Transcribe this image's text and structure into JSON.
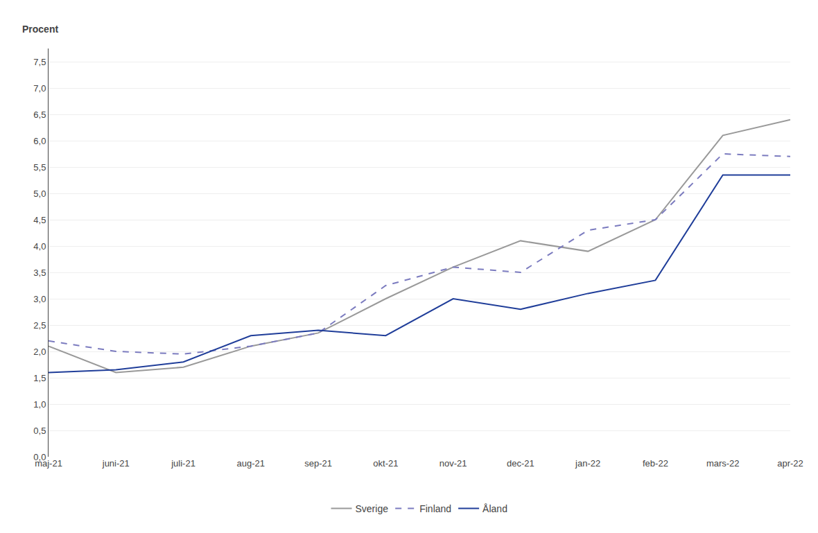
{
  "chart_data": {
    "type": "line",
    "ylabel": "Procent",
    "categories": [
      "maj-21",
      "juni-21",
      "juli-21",
      "aug-21",
      "sep-21",
      "okt-21",
      "nov-21",
      "dec-21",
      "jan-22",
      "feb-22",
      "mars-22",
      "apr-22"
    ],
    "series": [
      {
        "name": "Sverige",
        "color": "#999999",
        "line_style": "solid",
        "values": [
          2.1,
          1.6,
          1.7,
          2.1,
          2.35,
          3.0,
          3.6,
          4.1,
          3.9,
          4.5,
          6.1,
          6.4
        ]
      },
      {
        "name": "Finland",
        "color": "#7b7bbf",
        "line_style": "dashed",
        "values": [
          2.2,
          2.0,
          1.95,
          2.1,
          2.35,
          3.25,
          3.6,
          3.5,
          4.3,
          4.5,
          5.75,
          5.7
        ]
      },
      {
        "name": "Åland",
        "color": "#1f3d99",
        "line_style": "solid",
        "values": [
          1.6,
          1.65,
          1.8,
          2.3,
          2.4,
          2.3,
          3.0,
          2.8,
          3.1,
          3.35,
          5.35,
          5.35
        ]
      }
    ],
    "ylim": [
      0.0,
      7.75
    ],
    "yticks": [
      {
        "value": 0.0,
        "label": "0,0"
      },
      {
        "value": 0.5,
        "label": "0,5"
      },
      {
        "value": 1.0,
        "label": "1,0"
      },
      {
        "value": 1.5,
        "label": "1,5"
      },
      {
        "value": 2.0,
        "label": "2,0"
      },
      {
        "value": 2.5,
        "label": "2,5"
      },
      {
        "value": 3.0,
        "label": "3,0"
      },
      {
        "value": 3.5,
        "label": "3,5"
      },
      {
        "value": 4.0,
        "label": "4,0"
      },
      {
        "value": 4.5,
        "label": "4,5"
      },
      {
        "value": 5.0,
        "label": "5,0"
      },
      {
        "value": 5.5,
        "label": "5,5"
      },
      {
        "value": 6.0,
        "label": "6,0"
      },
      {
        "value": 6.5,
        "label": "6,5"
      },
      {
        "value": 7.0,
        "label": "7,0"
      },
      {
        "value": 7.5,
        "label": "7,5"
      }
    ],
    "grid": true,
    "legend": "bottom"
  }
}
